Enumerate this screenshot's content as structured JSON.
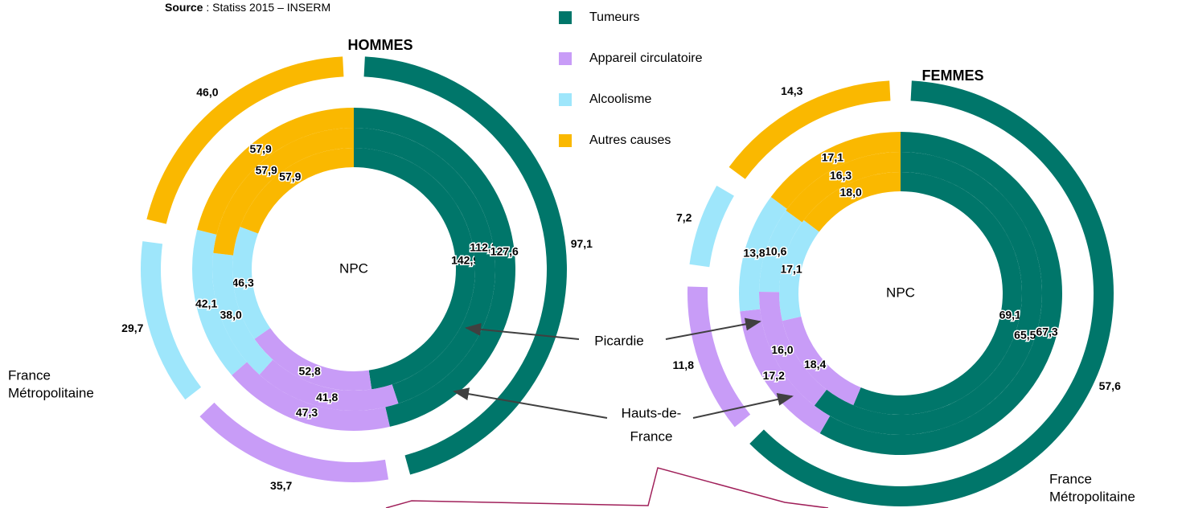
{
  "source": {
    "bold": "Source",
    "text": " : Statiss 2015 – INSERM"
  },
  "legend": [
    {
      "name": "Tumeurs",
      "color": "#00766a"
    },
    {
      "name": "Appareil circulatoire",
      "color": "#c89cf7"
    },
    {
      "name": "Alcoolisme",
      "color": "#9ee6fb"
    },
    {
      "name": "Autres causes",
      "color": "#fab800"
    }
  ],
  "ring_labels": {
    "picardie": "Picardie",
    "hauts_de_france": [
      "Hauts-de-",
      "France"
    ]
  },
  "chart_data": [
    {
      "type": "radial-bar",
      "title": "HOMMES",
      "center_label": "NPC",
      "outer_label": [
        "France",
        "Métropolitaine"
      ],
      "rings": [
        {
          "values": [
            142.9,
            52.8,
            46.3,
            57.9
          ],
          "value_labels": [
            "142,9",
            "52,8",
            "46,3",
            "57,9"
          ]
        },
        {
          "values": [
            112.2,
            41.8,
            38.0,
            57.9
          ],
          "value_labels": [
            "112,2",
            "41,8",
            "38,0",
            "57,9"
          ]
        },
        {
          "values": [
            127.6,
            47.3,
            42.1,
            57.9
          ],
          "value_labels": [
            "127,6",
            "47,3",
            "42,1",
            "57,9"
          ]
        },
        {
          "values": [
            97.1,
            35.7,
            29.7,
            46.0
          ],
          "value_labels": [
            "97,1",
            "35,7",
            "29,7",
            "46,0"
          ]
        }
      ]
    },
    {
      "type": "radial-bar",
      "title": "FEMMES",
      "center_label": "NPC",
      "outer_label": [
        "France",
        "Métropolitaine"
      ],
      "rings": [
        {
          "values": [
            69.1,
            18.4,
            17.1,
            18.0
          ],
          "value_labels": [
            "69,1",
            "18,4",
            "17,1",
            "18,0"
          ]
        },
        {
          "values": [
            65.5,
            16.0,
            10.6,
            16.3
          ],
          "value_labels": [
            "65,5",
            "16,0",
            "10,6",
            "16,3"
          ]
        },
        {
          "values": [
            67.3,
            17.2,
            13.8,
            17.1
          ],
          "value_labels": [
            "67,3",
            "17,2",
            "13,8",
            "17,1"
          ]
        },
        {
          "values": [
            57.6,
            11.8,
            7.2,
            14.3
          ],
          "value_labels": [
            "57,6",
            "11,8",
            "7,2",
            "14,3"
          ]
        }
      ]
    }
  ]
}
